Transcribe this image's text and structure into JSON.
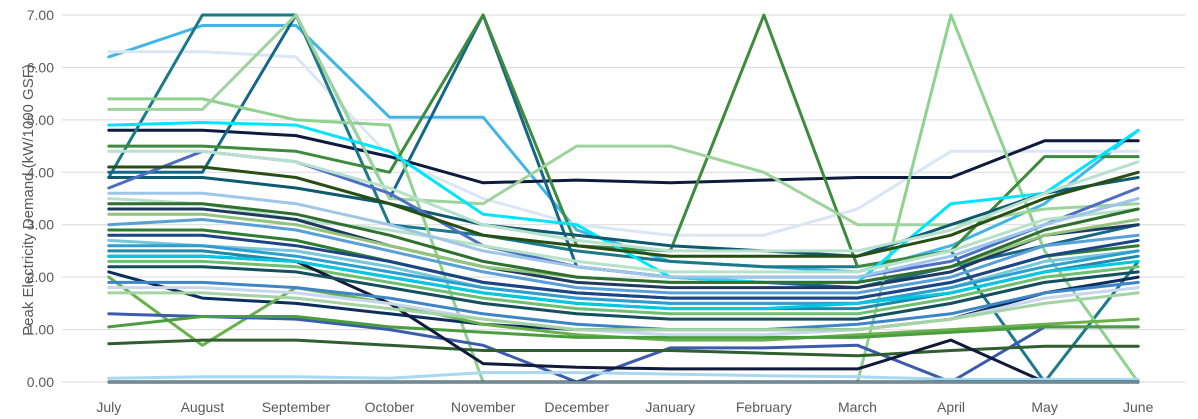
{
  "chart_data": {
    "type": "line",
    "xlabel": "",
    "ylabel": "Peak Electricity Demand (kW/1000 GSF)",
    "ylim": [
      0,
      7
    ],
    "yticks": [
      "0.00",
      "1.00",
      "2.00",
      "3.00",
      "4.00",
      "5.00",
      "6.00",
      "7.00"
    ],
    "categories": [
      "July",
      "August",
      "September",
      "October",
      "November",
      "December",
      "January",
      "February",
      "March",
      "April",
      "May",
      "June"
    ],
    "grid": "horizontal",
    "legend": "none",
    "series": [
      {
        "color": "#41b6e6",
        "values": [
          6.2,
          6.8,
          6.8,
          5.05,
          5.05,
          2.9,
          2.3,
          2.2,
          2.1,
          2.6,
          3.4,
          4.8
        ]
      },
      {
        "color": "#dae6f5",
        "values": [
          6.3,
          6.3,
          6.2,
          4.3,
          3.5,
          3.0,
          2.8,
          2.8,
          3.3,
          4.4,
          4.4,
          4.4
        ]
      },
      {
        "color": "#0d1b3e",
        "values": [
          4.8,
          4.8,
          4.7,
          4.3,
          3.8,
          3.85,
          3.8,
          3.85,
          3.9,
          3.9,
          4.6,
          4.6
        ]
      },
      {
        "color": "#1a7a8a",
        "values": [
          3.9,
          7.0,
          7.0,
          3.0,
          2.8,
          2.5,
          2.3,
          2.2,
          2.2,
          2.5,
          0.0,
          2.3
        ]
      },
      {
        "color": "#15678a",
        "values": [
          4.0,
          4.0,
          7.0,
          3.5,
          7.0,
          2.2,
          2.0,
          1.9,
          1.8,
          2.2,
          2.6,
          3.0
        ]
      },
      {
        "color": "#8fd18f",
        "values": [
          5.4,
          5.4,
          5.0,
          4.9,
          0.0,
          0.0,
          0.0,
          0.0,
          0.0,
          7.0,
          2.5,
          0.0
        ]
      },
      {
        "color": "#3e8a3e",
        "values": [
          4.5,
          4.5,
          4.4,
          4.0,
          7.0,
          2.6,
          2.5,
          7.0,
          2.2,
          2.5,
          4.3,
          4.3
        ]
      },
      {
        "color": "#9ed39e",
        "values": [
          5.2,
          5.2,
          7.0,
          3.5,
          3.4,
          4.5,
          4.5,
          4.0,
          3.0,
          3.0,
          3.3,
          3.4
        ]
      },
      {
        "color": "#00e5ff",
        "values": [
          4.9,
          4.95,
          4.9,
          4.4,
          3.2,
          3.0,
          2.0,
          1.9,
          1.9,
          3.4,
          3.6,
          4.8
        ]
      },
      {
        "color": "#0e5a6e",
        "values": [
          3.9,
          3.9,
          3.7,
          3.4,
          3.0,
          2.8,
          2.6,
          2.5,
          2.4,
          3.0,
          3.6,
          3.9
        ]
      },
      {
        "color": "#4c6fc4",
        "values": [
          3.7,
          4.4,
          4.2,
          3.6,
          2.6,
          2.2,
          2.0,
          2.0,
          2.0,
          2.3,
          3.0,
          3.7
        ]
      },
      {
        "color": "#b6e3c8",
        "values": [
          3.5,
          3.4,
          3.1,
          2.9,
          2.6,
          2.3,
          2.1,
          2.1,
          2.1,
          2.5,
          3.1,
          3.3
        ]
      },
      {
        "color": "#1f3a5f",
        "values": [
          3.3,
          3.3,
          3.1,
          2.6,
          2.2,
          1.9,
          1.8,
          1.8,
          1.8,
          2.1,
          2.8,
          3.0
        ]
      },
      {
        "color": "#5aa0d8",
        "values": [
          3.0,
          3.1,
          2.9,
          2.5,
          2.1,
          1.8,
          1.7,
          1.7,
          1.7,
          2.0,
          2.6,
          2.8
        ]
      },
      {
        "color": "#2e7d32",
        "values": [
          2.9,
          2.9,
          2.7,
          2.3,
          1.9,
          1.7,
          1.6,
          1.6,
          1.6,
          1.9,
          2.4,
          2.6
        ]
      },
      {
        "color": "#76c7d9",
        "values": [
          2.7,
          2.6,
          2.5,
          2.2,
          1.8,
          1.6,
          1.5,
          1.5,
          1.5,
          1.8,
          2.3,
          2.5
        ]
      },
      {
        "color": "#1e88a8",
        "values": [
          2.5,
          2.5,
          2.3,
          2.0,
          1.7,
          1.5,
          1.4,
          1.4,
          1.4,
          1.7,
          2.1,
          2.4
        ]
      },
      {
        "color": "#6fbf73",
        "values": [
          2.3,
          2.3,
          2.2,
          1.9,
          1.6,
          1.4,
          1.3,
          1.3,
          1.3,
          1.6,
          2.0,
          2.2
        ]
      },
      {
        "color": "#0b2e5c",
        "values": [
          2.1,
          1.6,
          1.5,
          1.3,
          1.1,
          1.0,
          1.0,
          1.0,
          1.0,
          1.2,
          1.7,
          2.0
        ]
      },
      {
        "color": "#6ab04c",
        "values": [
          2.0,
          0.7,
          1.8,
          1.5,
          1.1,
          0.9,
          0.8,
          0.8,
          0.9,
          1.0,
          1.1,
          1.2
        ]
      },
      {
        "color": "#3b5bab",
        "values": [
          1.3,
          1.25,
          1.2,
          1.0,
          0.7,
          0.0,
          0.65,
          0.65,
          0.7,
          0.0,
          1.05,
          1.05
        ]
      },
      {
        "color": "#4a9e3f",
        "values": [
          1.05,
          1.25,
          1.25,
          1.05,
          0.95,
          0.85,
          0.85,
          0.85,
          0.85,
          0.95,
          1.05,
          1.05
        ]
      },
      {
        "color": "#2f5e2f",
        "values": [
          0.73,
          0.8,
          0.8,
          0.7,
          0.6,
          0.6,
          0.6,
          0.55,
          0.5,
          0.6,
          0.68,
          0.68
        ]
      },
      {
        "color": "#111a3a",
        "values": [
          2.4,
          2.4,
          2.3,
          1.5,
          0.35,
          0.28,
          0.25,
          0.25,
          0.25,
          0.8,
          0.0,
          0.0
        ]
      },
      {
        "color": "#a8d8f0",
        "values": [
          0.07,
          0.1,
          0.1,
          0.07,
          0.18,
          0.18,
          0.15,
          0.12,
          0.1,
          0.05,
          0.05,
          0.05
        ]
      },
      {
        "color": "#0d3b4f",
        "values": [
          0.0,
          0.0,
          0.0,
          0.0,
          0.0,
          0.0,
          0.0,
          0.0,
          0.0,
          0.0,
          0.0,
          0.0
        ]
      },
      {
        "color": "#c8d6ee",
        "values": [
          1.8,
          1.8,
          1.7,
          1.5,
          1.2,
          1.0,
          0.9,
          0.9,
          1.0,
          1.2,
          1.6,
          1.8
        ]
      },
      {
        "color": "#2d9ecf",
        "values": [
          2.6,
          2.6,
          2.4,
          2.1,
          1.8,
          1.6,
          1.5,
          1.5,
          1.5,
          1.8,
          2.2,
          2.5
        ]
      },
      {
        "color": "#93c47d",
        "values": [
          3.2,
          3.2,
          3.0,
          2.6,
          2.2,
          2.0,
          1.9,
          1.9,
          1.9,
          2.2,
          2.8,
          3.1
        ]
      },
      {
        "color": "#274e13",
        "values": [
          4.1,
          4.1,
          3.9,
          3.4,
          2.8,
          2.6,
          2.4,
          2.4,
          2.4,
          2.8,
          3.5,
          4.0
        ]
      },
      {
        "color": "#9fc5e8",
        "values": [
          3.6,
          3.6,
          3.4,
          3.0,
          2.5,
          2.2,
          2.0,
          2.0,
          2.0,
          2.4,
          3.0,
          3.5
        ]
      },
      {
        "color": "#134f5c",
        "values": [
          2.2,
          2.2,
          2.1,
          1.8,
          1.5,
          1.3,
          1.2,
          1.2,
          1.2,
          1.5,
          1.9,
          2.1
        ]
      },
      {
        "color": "#b7e1cd",
        "values": [
          4.4,
          4.4,
          4.2,
          3.7,
          3.0,
          2.7,
          2.5,
          2.5,
          2.5,
          2.9,
          3.6,
          4.2
        ]
      },
      {
        "color": "#3d85c6",
        "values": [
          1.9,
          1.9,
          1.8,
          1.6,
          1.3,
          1.1,
          1.0,
          1.0,
          1.1,
          1.3,
          1.7,
          1.9
        ]
      },
      {
        "color": "#1c4587",
        "values": [
          2.8,
          2.8,
          2.6,
          2.3,
          1.9,
          1.7,
          1.6,
          1.6,
          1.6,
          1.9,
          2.4,
          2.7
        ]
      },
      {
        "color": "#00c8e0",
        "values": [
          2.4,
          2.4,
          2.3,
          2.0,
          1.7,
          1.5,
          1.4,
          1.4,
          1.5,
          1.7,
          2.1,
          2.3
        ]
      },
      {
        "color": "#a4d4a4",
        "values": [
          1.7,
          1.7,
          1.6,
          1.4,
          1.2,
          1.0,
          1.0,
          1.0,
          1.0,
          1.2,
          1.5,
          1.7
        ]
      },
      {
        "color": "#2f6f2f",
        "values": [
          3.4,
          3.4,
          3.2,
          2.8,
          2.3,
          2.0,
          1.9,
          1.9,
          1.9,
          2.2,
          2.9,
          3.3
        ]
      }
    ]
  }
}
